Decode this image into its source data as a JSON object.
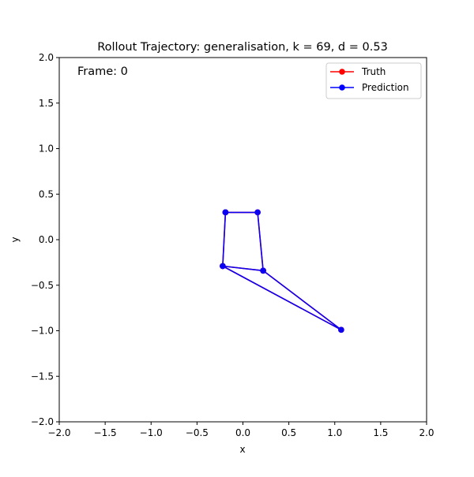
{
  "chart_data": {
    "type": "line",
    "title": "Rollout Trajectory: generalisation, k = 69, d = 0.53",
    "xlabel": "x",
    "ylabel": "y",
    "xlim": [
      -2.0,
      2.0
    ],
    "ylim": [
      -2.0,
      2.0
    ],
    "xticks": [
      "−2.0",
      "−1.5",
      "−1.0",
      "−0.5",
      "0.0",
      "0.5",
      "1.0",
      "1.5",
      "2.0"
    ],
    "xtick_values": [
      -2.0,
      -1.5,
      -1.0,
      -0.5,
      0.0,
      0.5,
      1.0,
      1.5,
      2.0
    ],
    "yticks": [
      "−2.0",
      "−1.5",
      "−1.0",
      "−0.5",
      "0.0",
      "0.5",
      "1.0",
      "1.5",
      "2.0"
    ],
    "ytick_values": [
      -2.0,
      -1.5,
      -1.0,
      -0.5,
      0.0,
      0.5,
      1.0,
      1.5,
      2.0
    ],
    "annotation": "Frame: 0",
    "grid": false,
    "legend_position": "top-right",
    "series": [
      {
        "name": "Truth",
        "color": "#ff0000",
        "points": [
          [
            -0.19,
            0.3
          ],
          [
            0.16,
            0.3
          ],
          [
            0.22,
            -0.34
          ],
          [
            -0.22,
            -0.29
          ],
          [
            -0.19,
            0.3
          ],
          [
            -0.22,
            -0.29
          ],
          [
            1.07,
            -0.99
          ],
          [
            0.22,
            -0.34
          ]
        ]
      },
      {
        "name": "Prediction",
        "color": "#0000ff",
        "points": [
          [
            -0.19,
            0.3
          ],
          [
            0.16,
            0.3
          ],
          [
            0.22,
            -0.34
          ],
          [
            -0.22,
            -0.29
          ],
          [
            -0.19,
            0.3
          ],
          [
            -0.22,
            -0.29
          ],
          [
            1.07,
            -0.99
          ],
          [
            0.22,
            -0.34
          ]
        ]
      }
    ]
  }
}
